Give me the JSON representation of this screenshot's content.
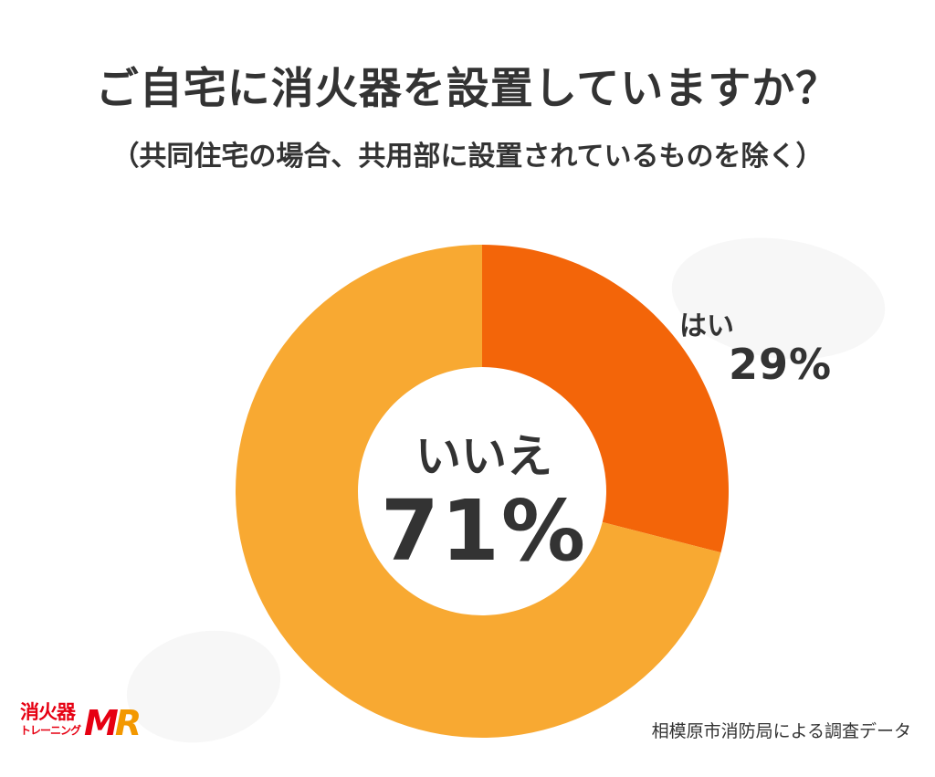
{
  "title": "ご自宅に消火器を設置していますか？",
  "subtitle": "（共同住宅の場合、共用部に設置されているものを除く）",
  "source": "相模原市消防局による調査データ",
  "logo": {
    "line1": "消火器",
    "line2": "トレーニング",
    "mark_m": "M",
    "mark_r": "R"
  },
  "colors": {
    "yes": "#f36509",
    "no": "#f8a932",
    "text": "#333333",
    "logo_red": "#e60012",
    "logo_orange": "#f39800"
  },
  "chart_data": {
    "type": "pie",
    "variant": "donut",
    "title": "ご自宅に消火器を設置していますか？",
    "subtitle": "（共同住宅の場合、共用部に設置されているものを除く）",
    "categories": [
      "はい",
      "いいえ"
    ],
    "values": [
      29,
      71
    ],
    "data_labels": [
      "29%",
      "71%"
    ],
    "colors": [
      "#f36509",
      "#f8a932"
    ],
    "start": "12 o'clock",
    "direction": "clockwise",
    "legend": "none"
  }
}
